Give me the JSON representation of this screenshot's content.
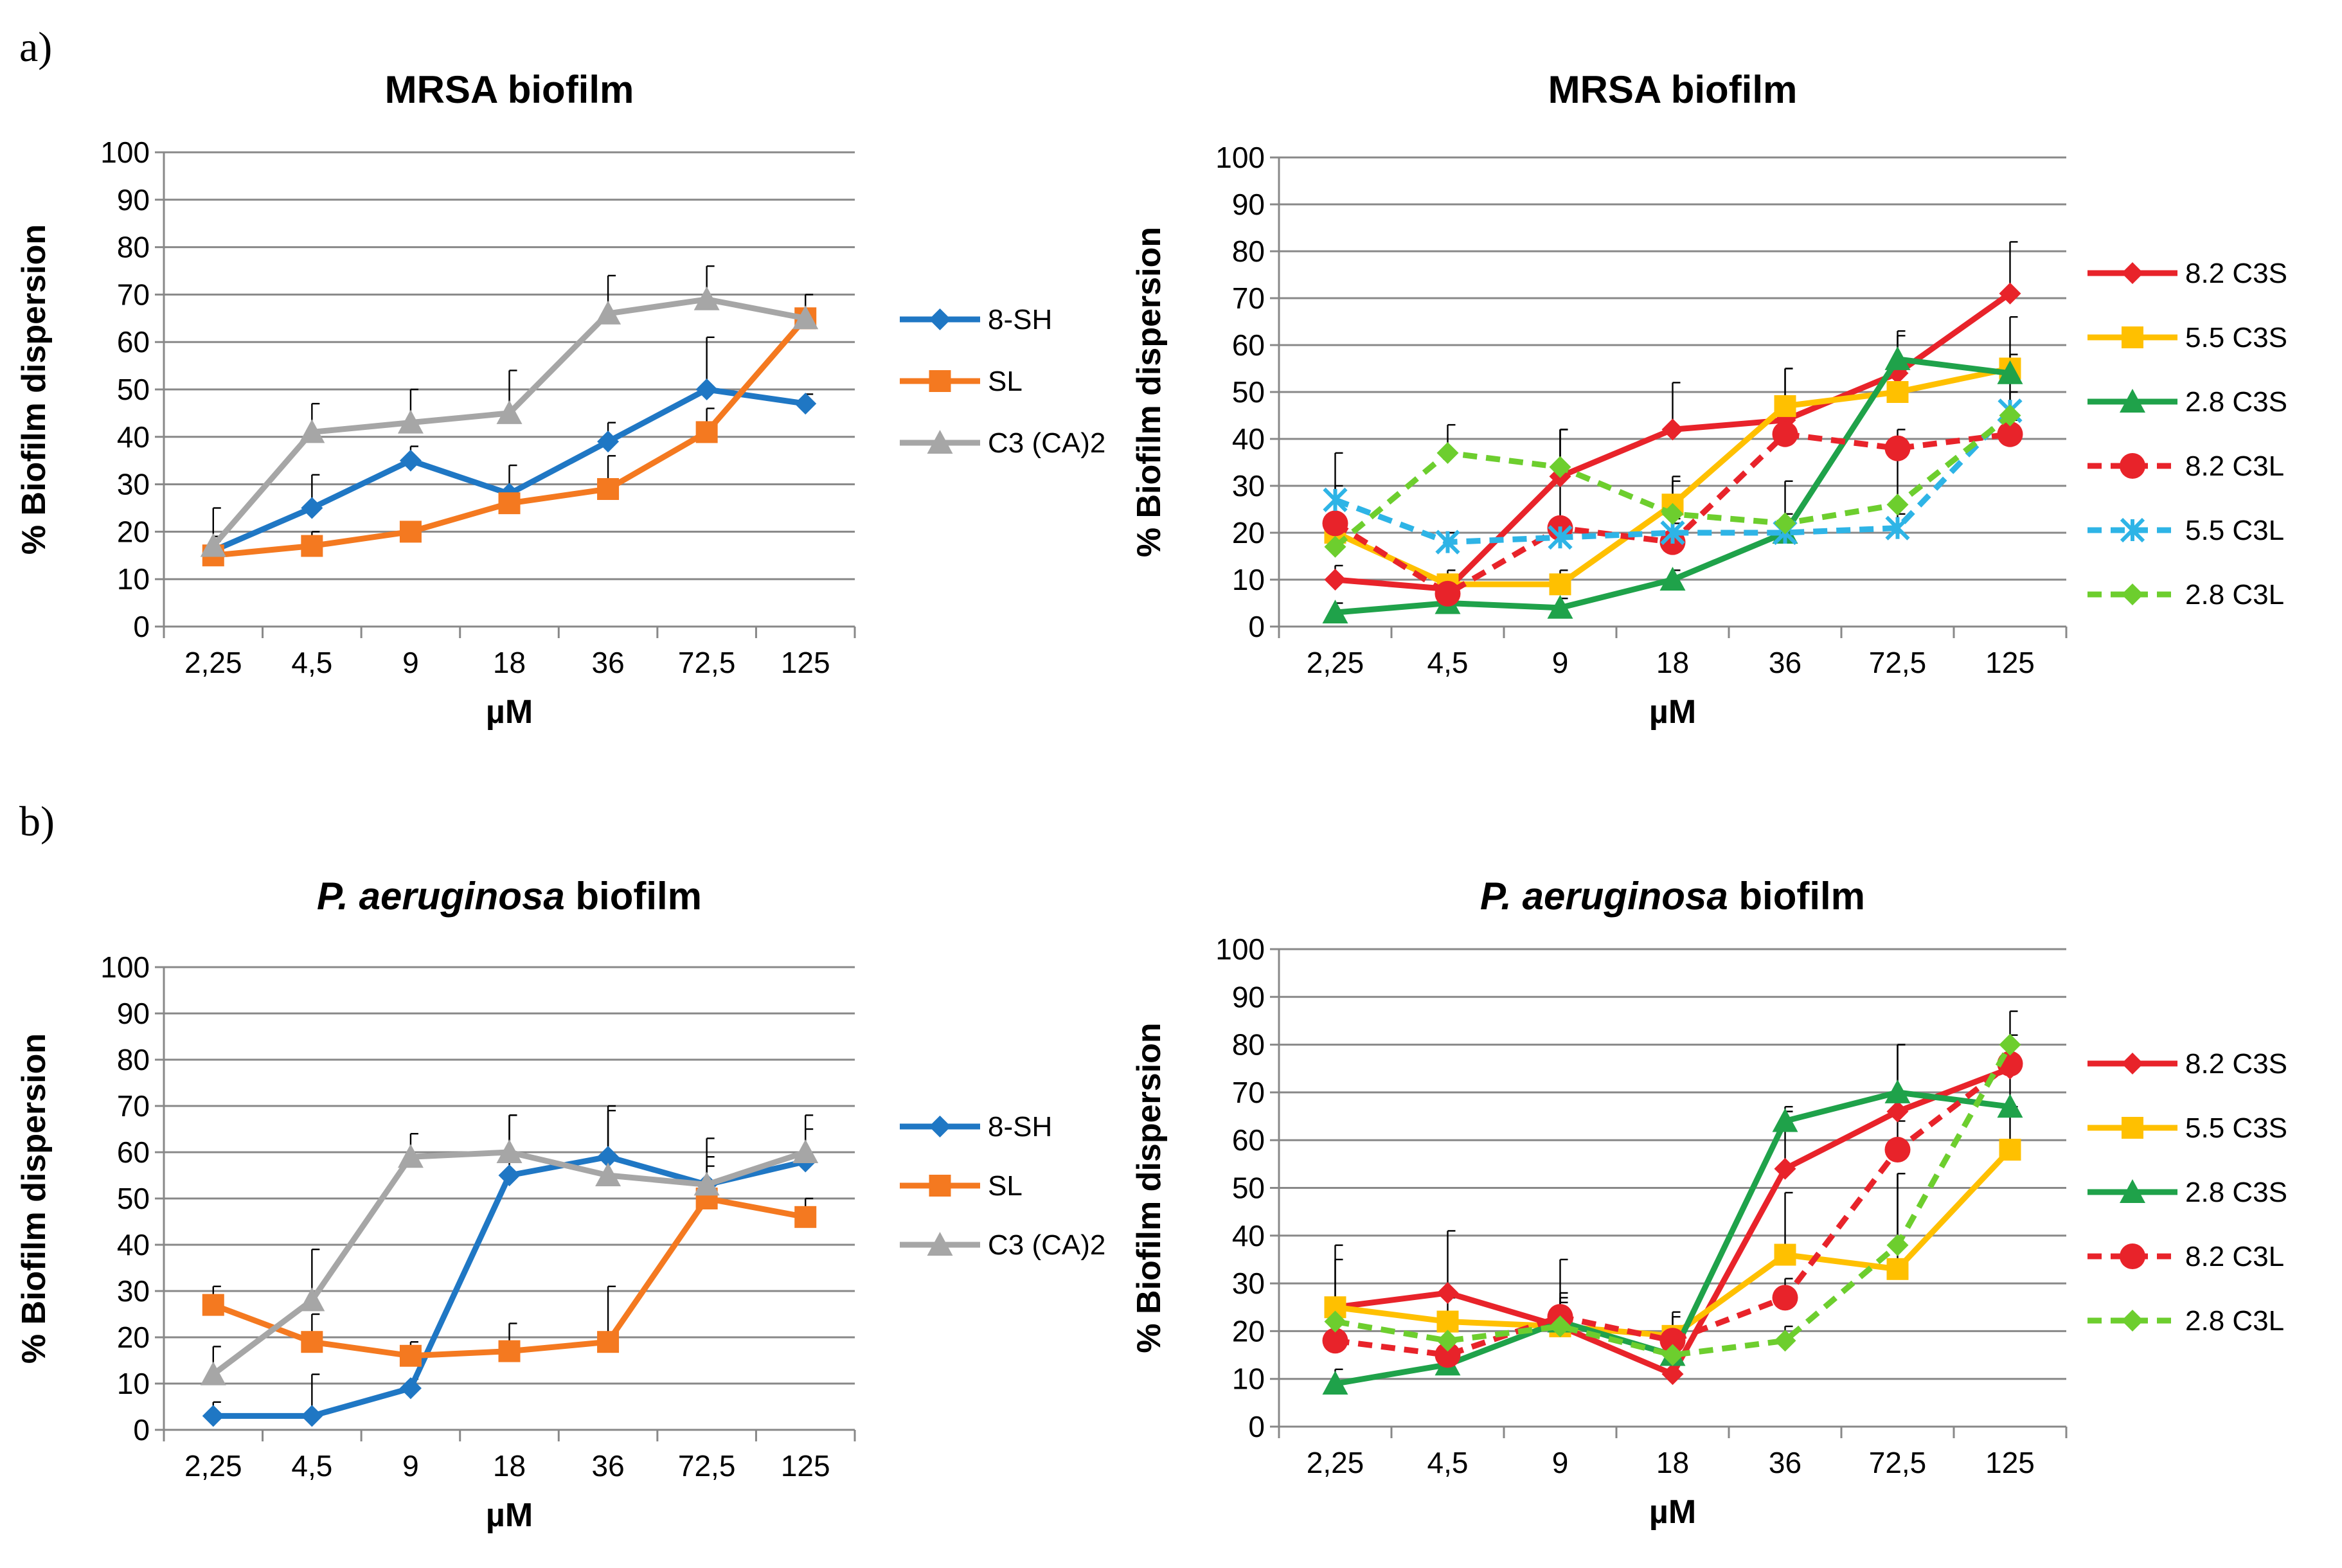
{
  "figure": {
    "panel_a_label": "a)",
    "panel_b_label": "b)"
  },
  "chart_data": [
    {
      "type": "line",
      "title": "MRSA biofilm",
      "xlabel": "µM",
      "ylabel": "% Biofilm dispersion",
      "categories": [
        "2,25",
        "4,5",
        "9",
        "18",
        "36",
        "72,5",
        "125"
      ],
      "ylim": [
        0,
        100
      ],
      "yticks": [
        0,
        10,
        20,
        30,
        40,
        50,
        60,
        70,
        80,
        90,
        100
      ],
      "grid": true,
      "legend_position": "right",
      "series": [
        {
          "name": "8-SH",
          "color": "#1F77C4",
          "marker": "diamond",
          "dash": "solid",
          "values": [
            16,
            25,
            35,
            28,
            39,
            50,
            47
          ],
          "errors": [
            3,
            7,
            3,
            6,
            4,
            11,
            2
          ]
        },
        {
          "name": "SL",
          "color": "#F47920",
          "marker": "square",
          "dash": "solid",
          "values": [
            15,
            17,
            20,
            26,
            29,
            41,
            65
          ],
          "errors": [
            3,
            3,
            2,
            3,
            7,
            5,
            2
          ]
        },
        {
          "name": "C3 (CA)2",
          "color": "#A6A6A6",
          "marker": "triangle",
          "dash": "solid",
          "values": [
            17,
            41,
            43,
            45,
            66,
            69,
            65
          ],
          "errors": [
            8,
            6,
            7,
            9,
            8,
            7,
            5
          ]
        }
      ]
    },
    {
      "type": "line",
      "title": "MRSA biofilm",
      "xlabel": "µM",
      "ylabel": "% Biofilm dispersion",
      "categories": [
        "2,25",
        "4,5",
        "9",
        "18",
        "36",
        "72,5",
        "125"
      ],
      "ylim": [
        0,
        100
      ],
      "yticks": [
        0,
        10,
        20,
        30,
        40,
        50,
        60,
        70,
        80,
        90,
        100
      ],
      "grid": true,
      "legend_position": "right",
      "series": [
        {
          "name": "8.2 C3S",
          "color": "#E8232A",
          "marker": "diamond",
          "dash": "solid",
          "values": [
            10,
            8,
            32,
            42,
            44,
            54,
            71
          ],
          "errors": [
            3,
            3,
            10,
            10,
            5,
            8,
            11
          ]
        },
        {
          "name": "5.5 C3S",
          "color": "#FFC000",
          "marker": "square",
          "dash": "solid",
          "values": [
            20,
            9,
            9,
            26,
            47,
            50,
            55
          ],
          "errors": [
            4,
            3,
            3,
            5,
            8,
            7,
            11
          ]
        },
        {
          "name": "2.8 C3S",
          "color": "#1FA24A",
          "marker": "triangle",
          "dash": "solid",
          "values": [
            3,
            5,
            4,
            10,
            20,
            57,
            54
          ],
          "errors": [
            2,
            2,
            2,
            2,
            3,
            6,
            4
          ]
        },
        {
          "name": "8.2 C3L",
          "color": "#E8232A",
          "marker": "circle",
          "dash": "dashed",
          "values": [
            22,
            7,
            21,
            18,
            41,
            38,
            41
          ],
          "errors": [
            15,
            3,
            21,
            4,
            14,
            4,
            3
          ]
        },
        {
          "name": "5.5 C3L",
          "color": "#2EB4E6",
          "marker": "asterisk",
          "dash": "dashed",
          "values": [
            27,
            18,
            19,
            20,
            20,
            21,
            46
          ],
          "errors": [
            3,
            2,
            3,
            3,
            4,
            3,
            4
          ]
        },
        {
          "name": "2.8 C3L",
          "color": "#6DCE2E",
          "marker": "diamond",
          "dash": "dashed",
          "values": [
            17,
            37,
            34,
            24,
            22,
            26,
            45
          ],
          "errors": [
            3,
            6,
            8,
            8,
            9,
            10,
            8
          ]
        }
      ]
    },
    {
      "type": "line",
      "title_italic": "P. aeruginosa",
      "title": "biofilm",
      "xlabel": "µM",
      "ylabel": "% Biofilm dispersion",
      "categories": [
        "2,25",
        "4,5",
        "9",
        "18",
        "36",
        "72,5",
        "125"
      ],
      "ylim": [
        0,
        100
      ],
      "yticks": [
        0,
        10,
        20,
        30,
        40,
        50,
        60,
        70,
        80,
        90,
        100
      ],
      "grid": true,
      "legend_position": "right",
      "series": [
        {
          "name": "8-SH",
          "color": "#1F77C4",
          "marker": "diamond",
          "dash": "solid",
          "values": [
            3,
            3,
            9,
            55,
            59,
            53,
            58
          ],
          "errors": [
            3,
            9,
            2,
            13,
            11,
            6,
            7
          ]
        },
        {
          "name": "SL",
          "color": "#F47920",
          "marker": "square",
          "dash": "solid",
          "values": [
            27,
            19,
            16,
            17,
            19,
            50,
            46
          ],
          "errors": [
            4,
            6,
            3,
            6,
            12,
            7,
            4
          ]
        },
        {
          "name": "C3 (CA)2",
          "color": "#A6A6A6",
          "marker": "triangle",
          "dash": "solid",
          "values": [
            12,
            28,
            59,
            60,
            55,
            53,
            60
          ],
          "errors": [
            6,
            11,
            5,
            8,
            14,
            10,
            8
          ]
        }
      ]
    },
    {
      "type": "line",
      "title_italic": "P. aeruginosa",
      "title": "biofilm",
      "xlabel": "µM",
      "ylabel": "% Biofilm dispersion",
      "categories": [
        "2,25",
        "4,5",
        "9",
        "18",
        "36",
        "72,5",
        "125"
      ],
      "ylim": [
        0,
        100
      ],
      "yticks": [
        0,
        10,
        20,
        30,
        40,
        50,
        60,
        70,
        80,
        90,
        100
      ],
      "grid": true,
      "legend_position": "right",
      "series": [
        {
          "name": "8.2 C3S",
          "color": "#E8232A",
          "marker": "diamond",
          "dash": "solid",
          "values": [
            25,
            28,
            21,
            11,
            54,
            66,
            75
          ],
          "errors": [
            13,
            13,
            14,
            9,
            12,
            14,
            7
          ]
        },
        {
          "name": "5.5 C3S",
          "color": "#FFC000",
          "marker": "square",
          "dash": "solid",
          "values": [
            25,
            22,
            21,
            19,
            36,
            33,
            58
          ],
          "errors": [
            10,
            5,
            6,
            5,
            13,
            20,
            9
          ]
        },
        {
          "name": "2.8 C3S",
          "color": "#1FA24A",
          "marker": "triangle",
          "dash": "solid",
          "values": [
            9,
            13,
            22,
            15,
            64,
            70,
            67
          ],
          "errors": [
            3,
            4,
            4,
            4,
            3,
            10,
            7
          ]
        },
        {
          "name": "8.2 C3L",
          "color": "#E8232A",
          "marker": "circle",
          "dash": "dashed",
          "values": [
            18,
            15,
            23,
            18,
            27,
            58,
            76
          ],
          "errors": [
            6,
            7,
            5,
            5,
            4,
            6,
            4
          ]
        },
        {
          "name": "2.8 C3L",
          "color": "#6DCE2E",
          "marker": "diamond",
          "dash": "dashed",
          "values": [
            22,
            18,
            21,
            15,
            18,
            38,
            80
          ],
          "errors": [
            4,
            5,
            4,
            4,
            3,
            15,
            7
          ]
        }
      ]
    }
  ]
}
